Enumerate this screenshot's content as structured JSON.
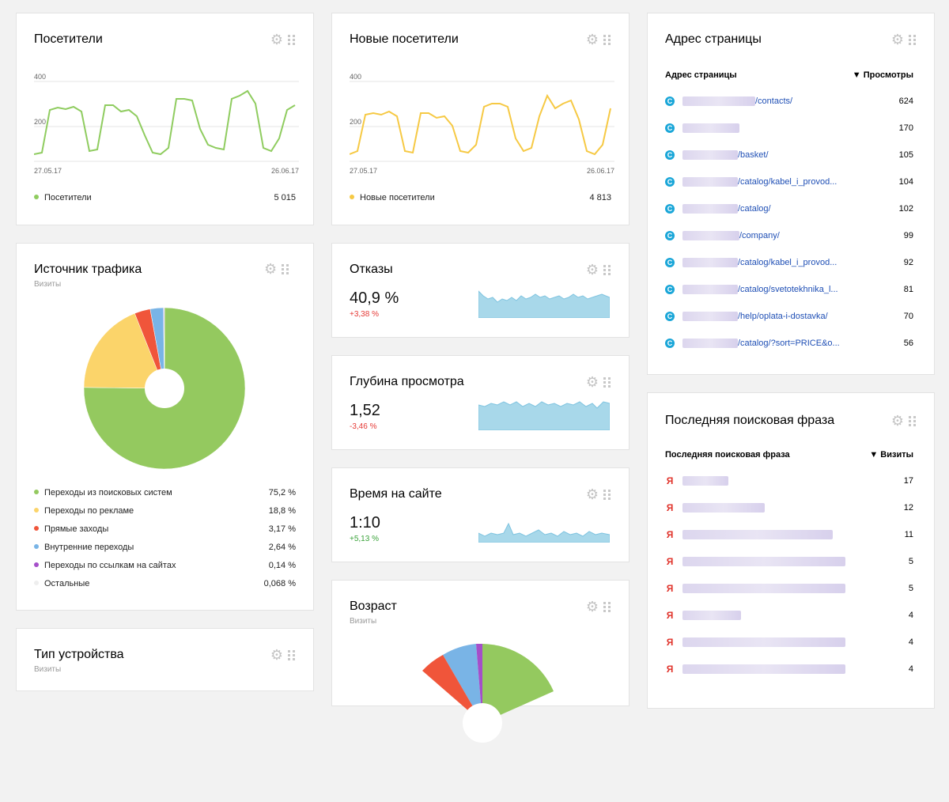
{
  "visitors": {
    "title": "Посетители",
    "y_tick_top": "400",
    "y_tick_mid": "200",
    "x_start": "27.05.17",
    "x_end": "26.06.17",
    "legend_label": "Посетители",
    "legend_value": "5 015",
    "color": "#8fcc5f"
  },
  "new_visitors": {
    "title": "Новые посетители",
    "y_tick_top": "400",
    "y_tick_mid": "200",
    "x_start": "27.05.17",
    "x_end": "26.06.17",
    "legend_label": "Новые посетители",
    "legend_value": "4 813",
    "color": "#f6c944"
  },
  "traffic": {
    "title": "Источник трафика",
    "subtitle": "Визиты",
    "items": [
      {
        "label": "Переходы из поисковых систем",
        "value": "75,2 %",
        "color": "#94c95f"
      },
      {
        "label": "Переходы по рекламе",
        "value": "18,8 %",
        "color": "#fbd46a"
      },
      {
        "label": "Прямые заходы",
        "value": "3,17 %",
        "color": "#f0553a"
      },
      {
        "label": "Внутренние переходы",
        "value": "2,64 %",
        "color": "#79b4e6"
      },
      {
        "label": "Переходы по ссылкам на сайтах",
        "value": "0,14 %",
        "color": "#a54fc9"
      },
      {
        "label": "Остальные",
        "value": "0,068 %",
        "color": "#eeeeee"
      }
    ]
  },
  "device": {
    "title": "Тип устройства",
    "subtitle": "Визиты"
  },
  "bounce": {
    "title": "Отказы",
    "value": "40,9 %",
    "delta": "+3,38 %"
  },
  "depth": {
    "title": "Глубина просмотра",
    "value": "1,52",
    "delta": "-3,46 %"
  },
  "time": {
    "title": "Время на сайте",
    "value": "1:10",
    "delta": "+5,13 %"
  },
  "age": {
    "title": "Возраст",
    "subtitle": "Визиты",
    "slice_colors": [
      "#94c95f",
      "#f0553a",
      "#79b4e6",
      "#a54fc9"
    ]
  },
  "pages": {
    "title": "Адрес страницы",
    "col1": "Адрес страницы",
    "col2": "▼ Просмотры",
    "rows": [
      {
        "url": "/contacts/",
        "views": "624"
      },
      {
        "url": "",
        "views": "170"
      },
      {
        "url": "/basket/",
        "views": "105"
      },
      {
        "url": "/catalog/kabel_i_provod...",
        "views": "104"
      },
      {
        "url": "/catalog/",
        "views": "102"
      },
      {
        "url": "/company/",
        "views": "99"
      },
      {
        "url": "/catalog/kabel_i_provod...",
        "views": "92"
      },
      {
        "url": "/catalog/svetotekhnika_l...",
        "views": "81"
      },
      {
        "url": "/help/oplata-i-dostavka/",
        "views": "70"
      },
      {
        "url": "/catalog/?sort=PRICE&o...",
        "views": "56"
      }
    ]
  },
  "search": {
    "title": "Последняя поисковая фраза",
    "col1": "Последняя поисковая фраза",
    "col2": "▼ Визиты",
    "engine_letter": "Я",
    "rows": [
      {
        "visits": "17"
      },
      {
        "visits": "12"
      },
      {
        "visits": "11"
      },
      {
        "visits": "5"
      },
      {
        "visits": "5"
      },
      {
        "visits": "4"
      },
      {
        "visits": "4"
      },
      {
        "visits": "4"
      }
    ]
  }
}
